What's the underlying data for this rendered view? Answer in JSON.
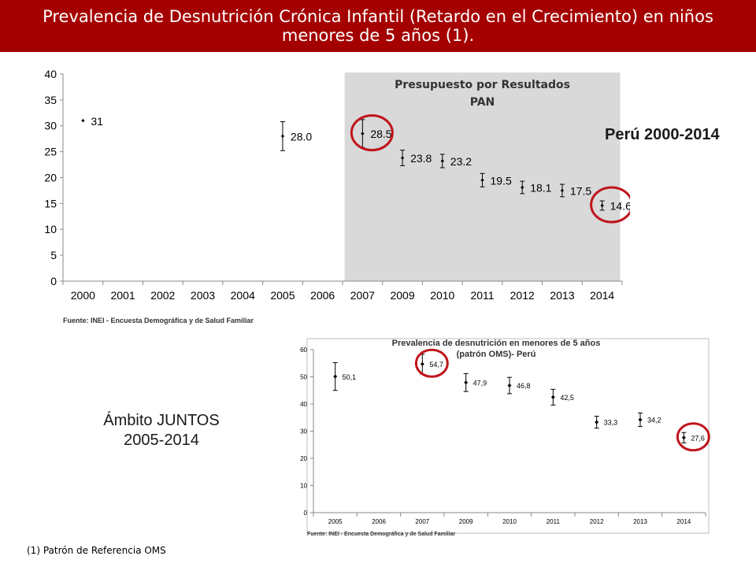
{
  "header": {
    "title": "Prevalencia de Desnutrición Crónica Infantil (Retardo en el Crecimiento) en niños menores de 5 años (1)."
  },
  "labels": {
    "peru": "Perú 2000-2014",
    "juntos_line1": "Ámbito JUNTOS",
    "juntos_line2": "2005-2014",
    "footnote": "(1) Patrón de Referencia OMS"
  },
  "colors": {
    "header_bg": "#a50000",
    "highlight_circle": "#c0141c",
    "shaded_region": "#d9d9d9"
  },
  "chart_data": [
    {
      "type": "scatter",
      "title": "",
      "categories": [
        "2000",
        "2001",
        "2002",
        "2003",
        "2004",
        "2005",
        "2006",
        "2007",
        "2009",
        "2010",
        "2011",
        "2012",
        "2013",
        "2014"
      ],
      "values": [
        31,
        null,
        null,
        null,
        null,
        28.0,
        null,
        28.5,
        23.8,
        23.2,
        19.5,
        18.1,
        17.5,
        14.6
      ],
      "value_labels": [
        "31",
        "",
        "",
        "",
        "",
        "28.0",
        "",
        "28.5",
        "23.8",
        "23.2",
        "19.5",
        "18.1",
        "17.5",
        "14.6"
      ],
      "error_low": [
        null,
        null,
        null,
        null,
        null,
        25.2,
        null,
        25.8,
        22.3,
        21.9,
        18.2,
        16.9,
        16.3,
        13.7
      ],
      "error_high": [
        null,
        null,
        null,
        null,
        null,
        30.8,
        null,
        31.2,
        25.3,
        24.5,
        20.8,
        19.3,
        18.7,
        15.5
      ],
      "ylim": [
        0,
        40
      ],
      "yticks": [
        0,
        5,
        10,
        15,
        20,
        25,
        30,
        35,
        40
      ],
      "shaded_region": {
        "from": "2007",
        "to": "2014",
        "label_line1": "Presupuesto por Resultados",
        "label_line2": "PAN"
      },
      "highlighted": [
        "2007",
        "2014"
      ],
      "source": "Fuente: INEI - Encuesta Demográfica y de Salud Familiar"
    },
    {
      "type": "scatter",
      "title": "Prevalencia  de desnutrición  en menores de 5 años (patrón OMS)- Perú",
      "categories": [
        "2005",
        "2006",
        "2007",
        "2009",
        "2010",
        "2011",
        "2012",
        "2013",
        "2014"
      ],
      "values": [
        50.1,
        null,
        54.7,
        47.9,
        46.8,
        42.5,
        33.3,
        34.2,
        27.6
      ],
      "value_labels": [
        "50,1",
        "",
        "54,7",
        "47,9",
        "46,8",
        "42,5",
        "33,3",
        "34,2",
        "27,6"
      ],
      "error_low": [
        45.0,
        null,
        51.0,
        44.6,
        43.8,
        39.6,
        31.1,
        31.7,
        25.7
      ],
      "error_high": [
        55.2,
        null,
        58.3,
        51.2,
        49.8,
        45.4,
        35.5,
        36.7,
        29.5
      ],
      "ylim": [
        0,
        60
      ],
      "yticks": [
        0,
        10,
        20,
        30,
        40,
        50,
        60
      ],
      "highlighted": [
        "2007",
        "2014"
      ],
      "source": "Fuente: INEI - Encuesta Demográfica y de Salud Familiar"
    }
  ]
}
